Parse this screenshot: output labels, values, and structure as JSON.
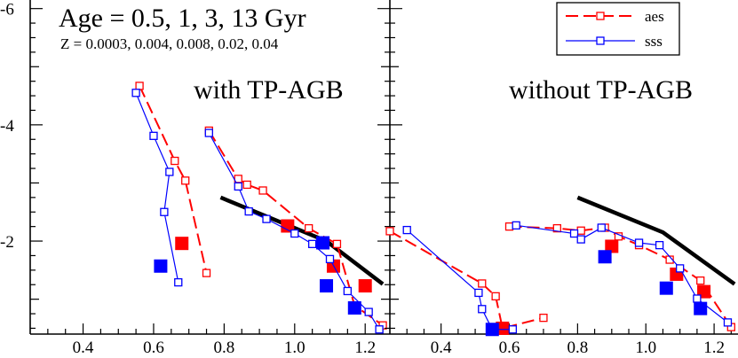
{
  "chart_data": [
    {
      "type": "line",
      "panel": "left",
      "annotations": {
        "age_line": "Age = 0.5, 1, 3, 13 Gyr",
        "z_line": "Z = 0.0003, 0.004, 0.008, 0.02, 0.04",
        "label": "with TP-AGB"
      },
      "xlim": [
        0.25,
        1.27
      ],
      "ylim": [
        -0.4,
        -6.3
      ],
      "x_ticks": [
        0.4,
        0.6,
        0.8,
        1.0,
        1.2
      ],
      "x_tick_labels": [
        "0.4",
        "0.6",
        "0.8",
        "1.0",
        "1.2"
      ],
      "y_ticks": [
        -2,
        -4,
        -6
      ],
      "y_tick_labels": [
        "-2",
        "-4",
        "-6"
      ],
      "series": [
        {
          "name": "aes",
          "color": "#ff0000",
          "dash": true,
          "paths": [
            [
              [
                0.56,
                -4.67
              ],
              [
                0.66,
                -3.38
              ],
              [
                0.69,
                -3.04
              ],
              [
                0.75,
                -1.45
              ]
            ],
            [
              [
                0.757,
                -3.9
              ],
              [
                0.84,
                -3.07
              ],
              [
                0.865,
                -2.97
              ],
              [
                0.91,
                -2.87
              ],
              [
                1.04,
                -2.22
              ],
              [
                1.12,
                -1.95
              ],
              [
                1.17,
                -0.89
              ],
              [
                1.25,
                -0.55
              ]
            ]
          ],
          "age_points": [
            [
              0.68,
              -1.96
            ],
            [
              0.98,
              -2.26
            ],
            [
              1.11,
              -1.57
            ],
            [
              1.2,
              -1.23
            ]
          ]
        },
        {
          "name": "sss",
          "color": "#0000ff",
          "dash": false,
          "paths": [
            [
              [
                0.55,
                -4.55
              ],
              [
                0.6,
                -3.81
              ],
              [
                0.645,
                -3.19
              ],
              [
                0.63,
                -2.5
              ],
              [
                0.67,
                -1.29
              ]
            ],
            [
              [
                0.757,
                -3.86
              ],
              [
                0.84,
                -2.94
              ],
              [
                0.87,
                -2.51
              ],
              [
                0.92,
                -2.38
              ],
              [
                1.0,
                -2.13
              ],
              [
                1.05,
                -1.95
              ],
              [
                1.1,
                -1.69
              ],
              [
                1.15,
                -1.14
              ],
              [
                1.21,
                -0.78
              ],
              [
                1.24,
                -0.48
              ]
            ]
          ],
          "age_points": [
            [
              0.62,
              -1.57
            ],
            [
              1.08,
              -1.97
            ],
            [
              1.09,
              -1.23
            ],
            [
              1.17,
              -0.85
            ]
          ]
        }
      ],
      "thick_line": [
        [
          0.79,
          -2.75
        ],
        [
          1.09,
          -2.0
        ],
        [
          1.25,
          -1.26
        ]
      ]
    },
    {
      "type": "line",
      "panel": "right",
      "annotations": {
        "label": "without TP-AGB"
      },
      "legend": {
        "position": "top-right",
        "entries": [
          "aes",
          "sss"
        ]
      },
      "xlim": [
        0.25,
        1.27
      ],
      "ylim": [
        -0.4,
        -6.3
      ],
      "x_ticks": [
        0.4,
        0.6,
        0.8,
        1.0,
        1.2
      ],
      "x_tick_labels": [
        "0.4",
        "0.6",
        "0.8",
        "1.0",
        "1.2"
      ],
      "series": [
        {
          "name": "aes",
          "color": "#ff0000",
          "dash": true,
          "paths": [
            [
              [
                0.25,
                -2.17
              ],
              [
                0.52,
                -1.27
              ],
              [
                0.56,
                -1.05
              ],
              [
                0.58,
                -0.5
              ],
              [
                0.7,
                -0.68
              ]
            ],
            [
              [
                0.6,
                -2.25
              ],
              [
                0.74,
                -2.22
              ],
              [
                0.81,
                -2.18
              ],
              [
                0.88,
                -2.23
              ],
              [
                0.92,
                -2.08
              ],
              [
                0.98,
                -1.93
              ],
              [
                1.07,
                -1.68
              ],
              [
                1.16,
                -1.32
              ],
              [
                1.25,
                -0.52
              ]
            ]
          ],
          "age_points": [
            [
              0.58,
              -0.5
            ],
            [
              0.9,
              -1.91
            ],
            [
              1.09,
              -1.43
            ],
            [
              1.17,
              -1.13
            ]
          ]
        },
        {
          "name": "sss",
          "color": "#0000ff",
          "dash": false,
          "paths": [
            [
              [
                0.3,
                -2.19
              ],
              [
                0.51,
                -1.11
              ],
              [
                0.52,
                -0.83
              ],
              [
                0.55,
                -0.48
              ],
              [
                0.61,
                -0.48
              ]
            ],
            [
              [
                0.62,
                -2.27
              ],
              [
                0.79,
                -2.13
              ],
              [
                0.81,
                -2.03
              ],
              [
                0.87,
                -2.23
              ],
              [
                0.98,
                -1.97
              ],
              [
                1.04,
                -1.93
              ],
              [
                1.1,
                -1.53
              ],
              [
                1.15,
                -1.01
              ],
              [
                1.24,
                -0.6
              ]
            ]
          ],
          "age_points": [
            [
              0.55,
              -0.48
            ],
            [
              0.88,
              -1.73
            ],
            [
              1.06,
              -1.19
            ],
            [
              1.16,
              -0.84
            ]
          ]
        }
      ],
      "thick_line": [
        [
          0.8,
          -2.75
        ],
        [
          1.05,
          -2.15
        ],
        [
          1.26,
          -1.26
        ]
      ]
    }
  ]
}
